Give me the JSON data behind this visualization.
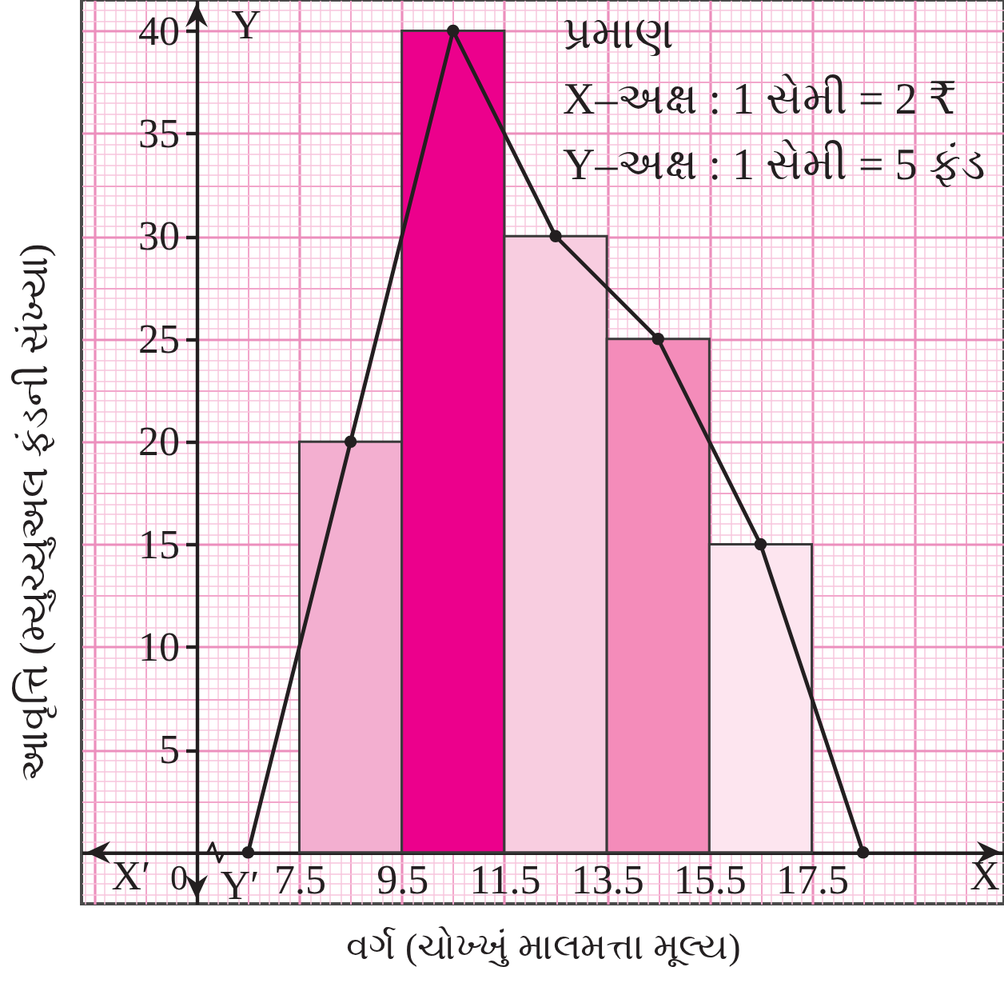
{
  "chart_data": {
    "type": "histogram",
    "xlabel": "વર્ગ (ચોખ્ખું માલમત્તા મૂલ્ય)",
    "ylabel": "આવૃત્તિ (મ્યુચ્યુઅલ ફંડની સંખ્યા)",
    "bins": [
      7.5,
      9.5,
      11.5,
      13.5,
      15.5,
      17.5
    ],
    "series": [
      {
        "values": [
          20,
          40,
          30,
          25,
          15
        ],
        "colors": [
          "#f3afd0",
          "#ec008c",
          "#f8cde0",
          "#f48cba",
          "#fde5ef"
        ]
      },
      {
        "type": "line",
        "x": [
          6.5,
          8.5,
          10.5,
          12.5,
          14.5,
          16.5,
          18.5
        ],
        "values": [
          0,
          20,
          40,
          30,
          25,
          15,
          0
        ],
        "color": "#231f20"
      }
    ],
    "xlim": [
      3.25,
      21.25
    ],
    "ylim": [
      -2.5,
      41.5
    ],
    "xticks": [
      {
        "value": 3.3,
        "label": null
      },
      {
        "value": 3.5,
        "label": null
      },
      {
        "value": 3.7,
        "label": null
      },
      {
        "value": 3.9,
        "label": null
      },
      {
        "value": 4.1,
        "label": null
      },
      {
        "value": 4.3,
        "label": null
      },
      {
        "value": 4.5,
        "label": null
      },
      {
        "value": 4.7,
        "label": null
      },
      {
        "value": 4.9,
        "label": null
      },
      {
        "value": 5.1,
        "label": null
      },
      {
        "value": 5.3,
        "label": null
      },
      {
        "value": 5.5,
        "label": null
      },
      {
        "value": 5.7,
        "label": null
      },
      {
        "value": 5.9,
        "label": null
      },
      {
        "value": 6.1,
        "label": null
      },
      {
        "value": 6.3,
        "label": null
      },
      {
        "value": 6.5,
        "label": null
      },
      {
        "value": 6.7,
        "label": null
      },
      {
        "value": 6.9,
        "label": null
      },
      {
        "value": 7.1,
        "label": null
      },
      {
        "value": 7.3,
        "label": null
      },
      7.5,
      {
        "value": 7.7,
        "label": null
      },
      {
        "value": 7.9,
        "label": null
      },
      {
        "value": 8.1,
        "label": null
      },
      {
        "value": 8.3,
        "label": null
      },
      {
        "value": 8.5,
        "label": null
      },
      {
        "value": 8.7,
        "label": null
      },
      {
        "value": 8.9,
        "label": null
      },
      {
        "value": 9.1,
        "label": null
      },
      {
        "value": 9.3,
        "label": null
      },
      9.5,
      {
        "value": 9.7,
        "label": null
      },
      {
        "value": 9.9,
        "label": null
      },
      {
        "value": 10.1,
        "label": null
      },
      {
        "value": 10.3,
        "label": null
      },
      {
        "value": 10.5,
        "label": null
      },
      {
        "value": 10.7,
        "label": null
      },
      {
        "value": 10.9,
        "label": null
      },
      {
        "value": 11.1,
        "label": null
      },
      {
        "value": 11.3,
        "label": null
      },
      11.5,
      {
        "value": 11.7,
        "label": null
      },
      {
        "value": 11.9,
        "label": null
      },
      {
        "value": 12.1,
        "label": null
      },
      {
        "value": 12.3,
        "label": null
      },
      {
        "value": 12.5,
        "label": null
      },
      {
        "value": 12.7,
        "label": null
      },
      {
        "value": 12.9,
        "label": null
      },
      {
        "value": 13.1,
        "label": null
      },
      {
        "value": 13.3,
        "label": null
      },
      13.5,
      {
        "value": 13.7,
        "label": null
      },
      {
        "value": 13.9,
        "label": null
      },
      {
        "value": 14.1,
        "label": null
      },
      {
        "value": 14.3,
        "label": null
      },
      {
        "value": 14.5,
        "label": null
      },
      {
        "value": 14.7,
        "label": null
      },
      {
        "value": 14.9,
        "label": null
      },
      {
        "value": 15.1,
        "label": null
      },
      {
        "value": 15.3,
        "label": null
      },
      15.5,
      {
        "value": 15.7,
        "label": null
      },
      {
        "value": 15.9,
        "label": null
      },
      {
        "value": 16.1,
        "label": null
      },
      {
        "value": 16.3,
        "label": null
      },
      {
        "value": 16.5,
        "label": null
      },
      {
        "value": 16.7,
        "label": null
      },
      {
        "value": 16.9,
        "label": null
      },
      {
        "value": 17.1,
        "label": null
      },
      {
        "value": 17.3,
        "label": null
      },
      17.5,
      {
        "value": 17.7,
        "label": null
      },
      {
        "value": 17.9,
        "label": null
      },
      {
        "value": 18.1,
        "label": null
      },
      {
        "value": 18.3,
        "label": null
      },
      {
        "value": 18.5,
        "label": null
      },
      {
        "value": 18.7,
        "label": null
      },
      {
        "value": 18.9,
        "label": null
      },
      {
        "value": 19.1,
        "label": null
      },
      {
        "value": 19.3,
        "label": null
      },
      {
        "value": 19.5,
        "label": null
      },
      {
        "value": 19.7,
        "label": null
      },
      {
        "value": 19.9,
        "label": null
      },
      {
        "value": 20.1,
        "label": null
      },
      {
        "value": 20.3,
        "label": null
      },
      {
        "value": 20.5,
        "label": null
      },
      {
        "value": 20.7,
        "label": null
      },
      {
        "value": 20.9,
        "label": null
      },
      {
        "value": 21.1,
        "label": null
      }
    ],
    "yticks": [
      {
        "value": -2,
        "label": null
      },
      {
        "value": -1.5,
        "label": null
      },
      {
        "value": -1,
        "label": null
      },
      {
        "value": -0.5,
        "label": null
      },
      {
        "value": 0,
        "label": null
      },
      {
        "value": 0.5,
        "label": null
      },
      {
        "value": 1,
        "label": null
      },
      {
        "value": 1.5,
        "label": null
      },
      {
        "value": 2,
        "label": null
      },
      {
        "value": 2.5,
        "label": null
      },
      {
        "value": 3,
        "label": null
      },
      {
        "value": 3.5,
        "label": null
      },
      {
        "value": 4,
        "label": null
      },
      {
        "value": 4.5,
        "label": null
      },
      5,
      {
        "value": 5.5,
        "label": null
      },
      {
        "value": 6,
        "label": null
      },
      {
        "value": 6.5,
        "label": null
      },
      {
        "value": 7,
        "label": null
      },
      {
        "value": 7.5,
        "label": null
      },
      {
        "value": 8,
        "label": null
      },
      {
        "value": 8.5,
        "label": null
      },
      {
        "value": 9,
        "label": null
      },
      {
        "value": 9.5,
        "label": null
      },
      10,
      {
        "value": 10.5,
        "label": null
      },
      {
        "value": 11,
        "label": null
      },
      {
        "value": 11.5,
        "label": null
      },
      {
        "value": 12,
        "label": null
      },
      {
        "value": 12.5,
        "label": null
      },
      {
        "value": 13,
        "label": null
      },
      {
        "value": 13.5,
        "label": null
      },
      {
        "value": 14,
        "label": null
      },
      {
        "value": 14.5,
        "label": null
      },
      15,
      {
        "value": 15.5,
        "label": null
      },
      {
        "value": 16,
        "label": null
      },
      {
        "value": 16.5,
        "label": null
      },
      {
        "value": 17,
        "label": null
      },
      {
        "value": 17.5,
        "label": null
      },
      {
        "value": 18,
        "label": null
      },
      {
        "value": 18.5,
        "label": null
      },
      {
        "value": 19,
        "label": null
      },
      {
        "value": 19.5,
        "label": null
      },
      20,
      {
        "value": 20.5,
        "label": null
      },
      {
        "value": 21,
        "label": null
      },
      {
        "value": 21.5,
        "label": null
      },
      {
        "value": 22,
        "label": null
      },
      {
        "value": 22.5,
        "label": null
      },
      {
        "value": 23,
        "label": null
      },
      {
        "value": 23.5,
        "label": null
      },
      {
        "value": 24,
        "label": null
      },
      {
        "value": 24.5,
        "label": null
      },
      25,
      {
        "value": 25.5,
        "label": null
      },
      {
        "value": 26,
        "label": null
      },
      {
        "value": 26.5,
        "label": null
      },
      {
        "value": 27,
        "label": null
      },
      {
        "value": 27.5,
        "label": null
      },
      {
        "value": 28,
        "label": null
      },
      {
        "value": 28.5,
        "label": null
      },
      {
        "value": 29,
        "label": null
      },
      {
        "value": 29.5,
        "label": null
      },
      30,
      {
        "value": 30.5,
        "label": null
      },
      {
        "value": 31,
        "label": null
      },
      {
        "value": 31.5,
        "label": null
      },
      {
        "value": 32,
        "label": null
      },
      {
        "value": 32.5,
        "label": null
      },
      {
        "value": 33,
        "label": null
      },
      {
        "value": 33.5,
        "label": null
      },
      {
        "value": 34,
        "label": null
      },
      {
        "value": 34.5,
        "label": null
      },
      35,
      {
        "value": 35.5,
        "label": null
      },
      {
        "value": 36,
        "label": null
      },
      {
        "value": 36.5,
        "label": null
      },
      {
        "value": 37,
        "label": null
      },
      {
        "value": 37.5,
        "label": null
      },
      {
        "value": 38,
        "label": null
      },
      {
        "value": 38.5,
        "label": null
      },
      {
        "value": 39,
        "label": null
      },
      {
        "value": 39.5,
        "label": null
      },
      40,
      {
        "value": 40.5,
        "label": null
      },
      {
        "value": 41,
        "label": null
      }
    ],
    "grid": true,
    "marker": "circle",
    "annotations": [
      "પ્રમાણ",
      "X–અક્ષ : 1 સેમી = 2 ₹",
      "Y–અક્ષ : 1 સેમી = 5 ફંડ",
      "Y",
      "X′",
      "0",
      "Y′",
      "X"
    ]
  }
}
